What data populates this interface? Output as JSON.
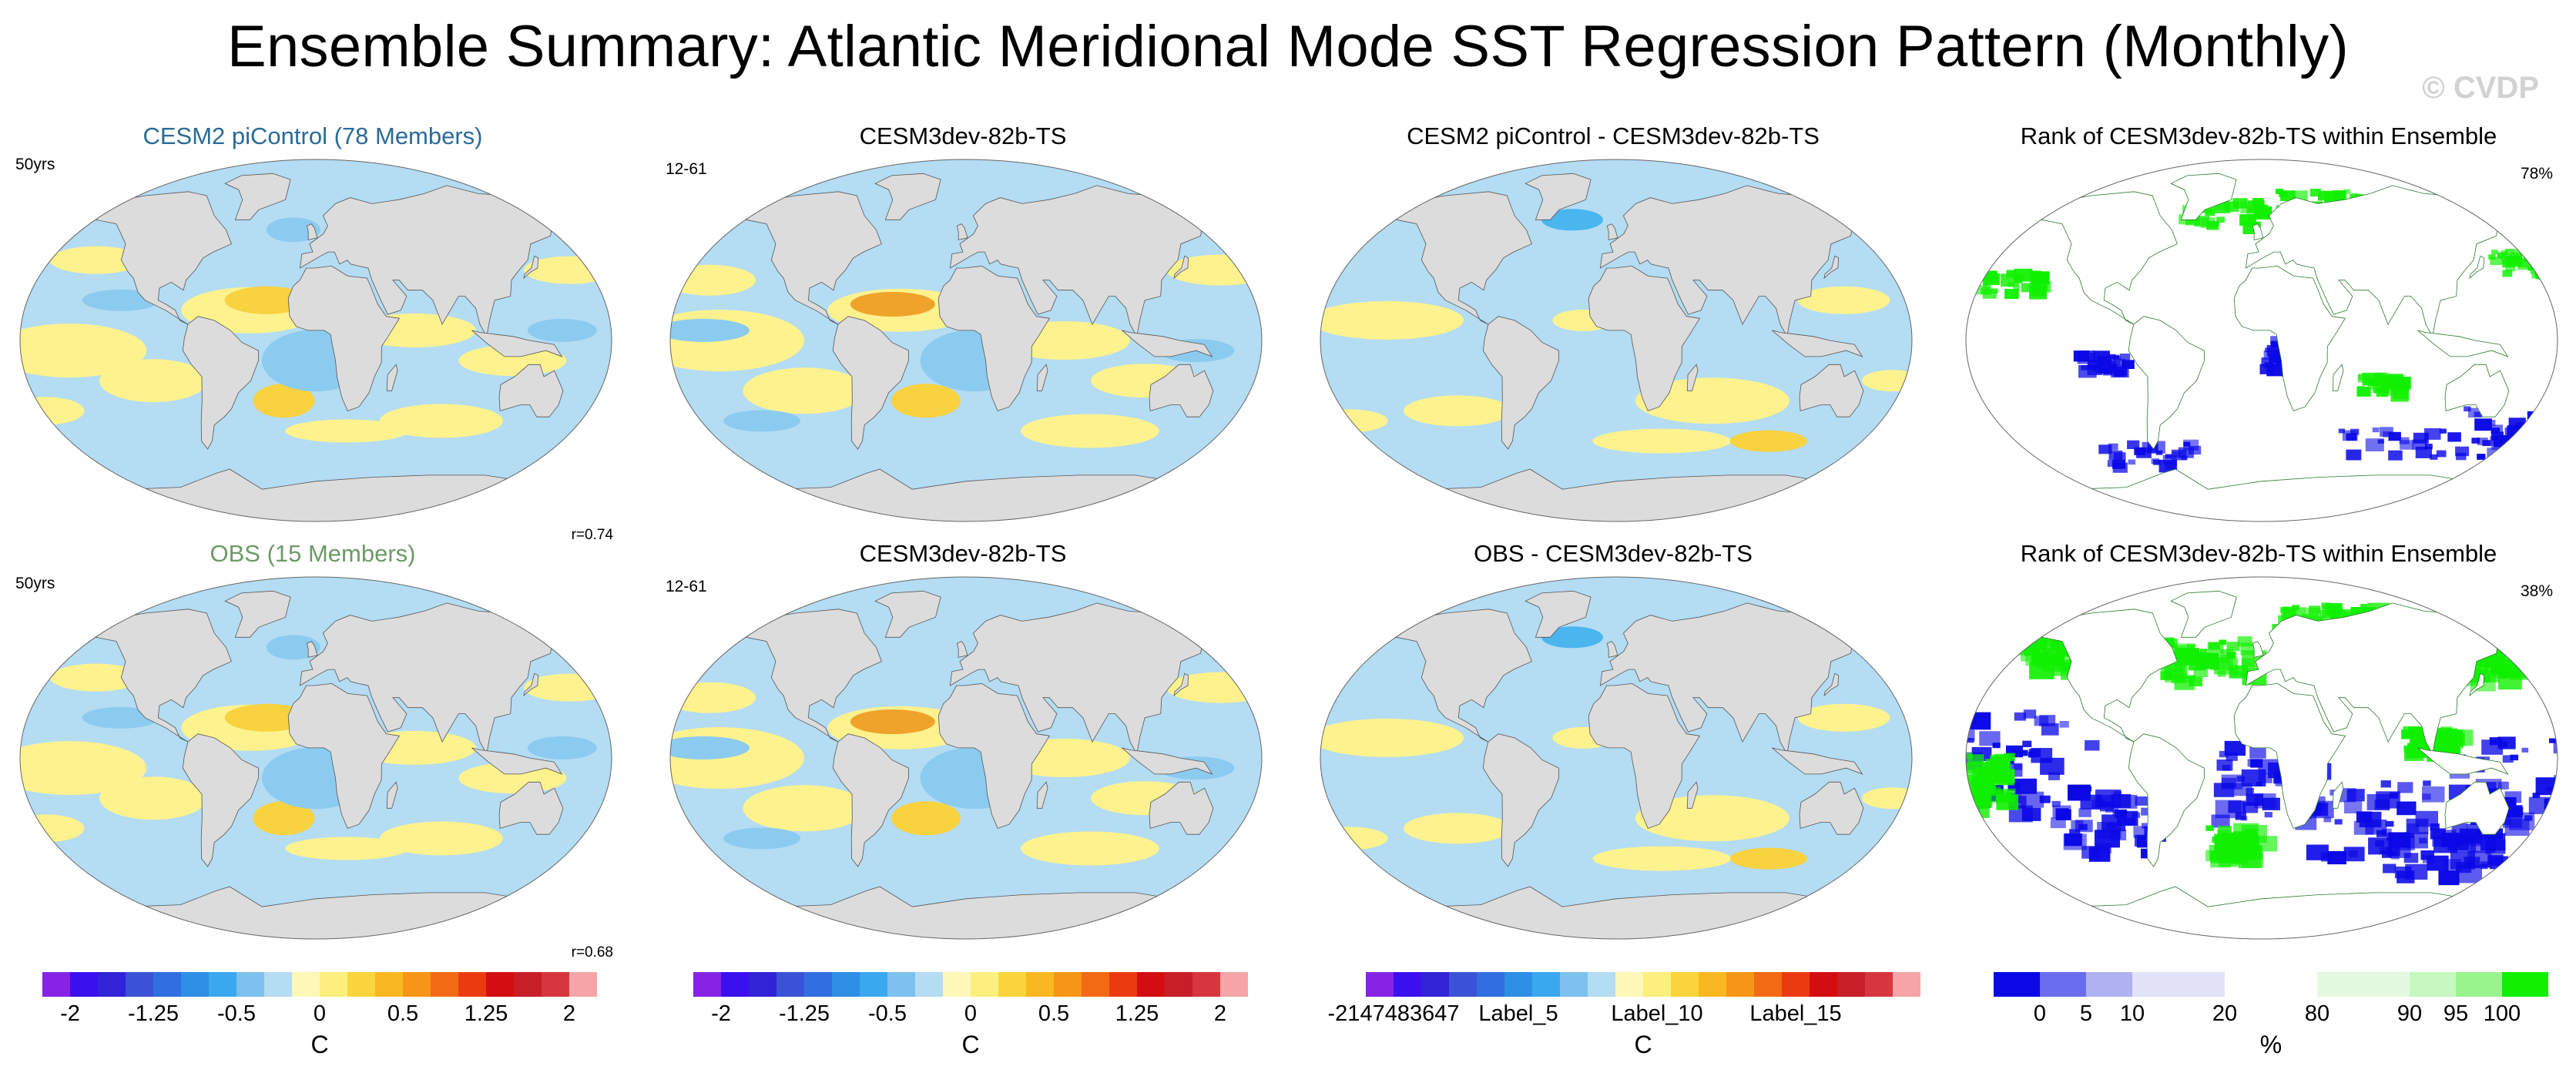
{
  "title": "Ensemble Summary: Atlantic Meridional Mode SST Regression Pattern (Monthly)",
  "watermark": "© CVDP",
  "colors": {
    "land": "#dcdcdc",
    "ocean_neg_light": "#b4dcf3",
    "ocean_neg_mid": "#8ccbf0",
    "ocean_neg_strong": "#4ab5ee",
    "ocean_pos_light": "#fdf28e",
    "ocean_pos_mid": "#f8d23f",
    "ocean_pos_strong": "#f0a32a",
    "rank_high": "#10f000",
    "rank_low": "#0a08e6"
  },
  "panels": [
    {
      "id": "p1",
      "title": "CESM2 piControl (78 Members)",
      "title_color": "blue",
      "left_label": "50yrs",
      "right_label": "",
      "corr": "r=0.74",
      "kind": "sst"
    },
    {
      "id": "p2",
      "title": "CESM3dev-82b-TS",
      "title_color": "black",
      "left_label": "12-61",
      "right_label": "",
      "corr": "",
      "kind": "sst"
    },
    {
      "id": "p3",
      "title": "CESM2 piControl - CESM3dev-82b-TS",
      "title_color": "black",
      "left_label": "",
      "right_label": "",
      "corr": "",
      "kind": "diff"
    },
    {
      "id": "p4",
      "title": "Rank of CESM3dev-82b-TS within Ensemble",
      "title_color": "black",
      "left_label": "",
      "right_label": "78%",
      "corr": "",
      "kind": "rank"
    },
    {
      "id": "p5",
      "title": "OBS (15 Members)",
      "title_color": "green",
      "left_label": "50yrs",
      "right_label": "",
      "corr": "r=0.68",
      "kind": "sst"
    },
    {
      "id": "p6",
      "title": "CESM3dev-82b-TS",
      "title_color": "black",
      "left_label": "12-61",
      "right_label": "",
      "corr": "",
      "kind": "sst"
    },
    {
      "id": "p7",
      "title": "OBS - CESM3dev-82b-TS",
      "title_color": "black",
      "left_label": "",
      "right_label": "",
      "corr": "",
      "kind": "diff"
    },
    {
      "id": "p8",
      "title": "Rank of CESM3dev-82b-TS within Ensemble",
      "title_color": "black",
      "left_label": "",
      "right_label": "38%",
      "corr": "",
      "kind": "rank2"
    }
  ],
  "colorbars": [
    {
      "id": "cb1",
      "units": "C",
      "colors": [
        "#8723e4",
        "#3b10ee",
        "#3123d6",
        "#3a53d6",
        "#2f6fe0",
        "#2d8fe6",
        "#3aa8ee",
        "#7cc1ee",
        "#b4dcf3",
        "#fdf7b8",
        "#fdef7e",
        "#fcd43c",
        "#f9b822",
        "#f69518",
        "#f26a14",
        "#ec3a10",
        "#d40e10",
        "#c81e28",
        "#d6373f",
        "#f5a5a7"
      ],
      "ticks": [
        {
          "label": "-2",
          "pos": 1
        },
        {
          "label": "-1.25",
          "pos": 4
        },
        {
          "label": "-0.5",
          "pos": 7
        },
        {
          "label": "0",
          "pos": 10
        },
        {
          "label": "0.5",
          "pos": 13
        },
        {
          "label": "1.25",
          "pos": 16
        },
        {
          "label": "2",
          "pos": 19
        }
      ]
    },
    {
      "id": "cb2",
      "units": "C",
      "colors": [
        "#8723e4",
        "#3b10ee",
        "#3123d6",
        "#3a53d6",
        "#2f6fe0",
        "#2d8fe6",
        "#3aa8ee",
        "#7cc1ee",
        "#b4dcf3",
        "#fdf7b8",
        "#fdef7e",
        "#fcd43c",
        "#f9b822",
        "#f69518",
        "#f26a14",
        "#ec3a10",
        "#d40e10",
        "#c81e28",
        "#d6373f",
        "#f5a5a7"
      ],
      "ticks": [
        {
          "label": "-2",
          "pos": 1
        },
        {
          "label": "-1.25",
          "pos": 4
        },
        {
          "label": "-0.5",
          "pos": 7
        },
        {
          "label": "0",
          "pos": 10
        },
        {
          "label": "0.5",
          "pos": 13
        },
        {
          "label": "1.25",
          "pos": 16
        },
        {
          "label": "2",
          "pos": 19
        }
      ]
    },
    {
      "id": "cb3",
      "units": "C",
      "colors": [
        "#8723e4",
        "#3b10ee",
        "#3123d6",
        "#3a53d6",
        "#2f6fe0",
        "#2d8fe6",
        "#3aa8ee",
        "#7cc1ee",
        "#b4dcf3",
        "#fdf7b8",
        "#fdef7e",
        "#fcd43c",
        "#f9b822",
        "#f69518",
        "#f26a14",
        "#ec3a10",
        "#d40e10",
        "#c81e28",
        "#d6373f",
        "#f5a5a7"
      ],
      "ticks": [
        {
          "label": "-2147483647",
          "pos": 1
        },
        {
          "label": "Label_5",
          "pos": 5.5
        },
        {
          "label": "Label_10",
          "pos": 10.5
        },
        {
          "label": "Label_15",
          "pos": 15.5
        }
      ]
    },
    {
      "id": "cb4",
      "units": "%",
      "colors": [
        "#0a08e6",
        "#6a6cf0",
        "#b0b2f4",
        "#e2e2f8",
        "#e2e2f8",
        "#ffffff",
        "#ffffff",
        "#e4fae0",
        "#e4fae0",
        "#c6f8c0",
        "#98f48c",
        "#10f000"
      ],
      "ticks": [
        {
          "label": "0",
          "pos": 1
        },
        {
          "label": "5",
          "pos": 2
        },
        {
          "label": "10",
          "pos": 3
        },
        {
          "label": "20",
          "pos": 5
        },
        {
          "label": "80",
          "pos": 7
        },
        {
          "label": "90",
          "pos": 9
        },
        {
          "label": "95",
          "pos": 10
        },
        {
          "label": "100",
          "pos": 11
        }
      ]
    }
  ]
}
